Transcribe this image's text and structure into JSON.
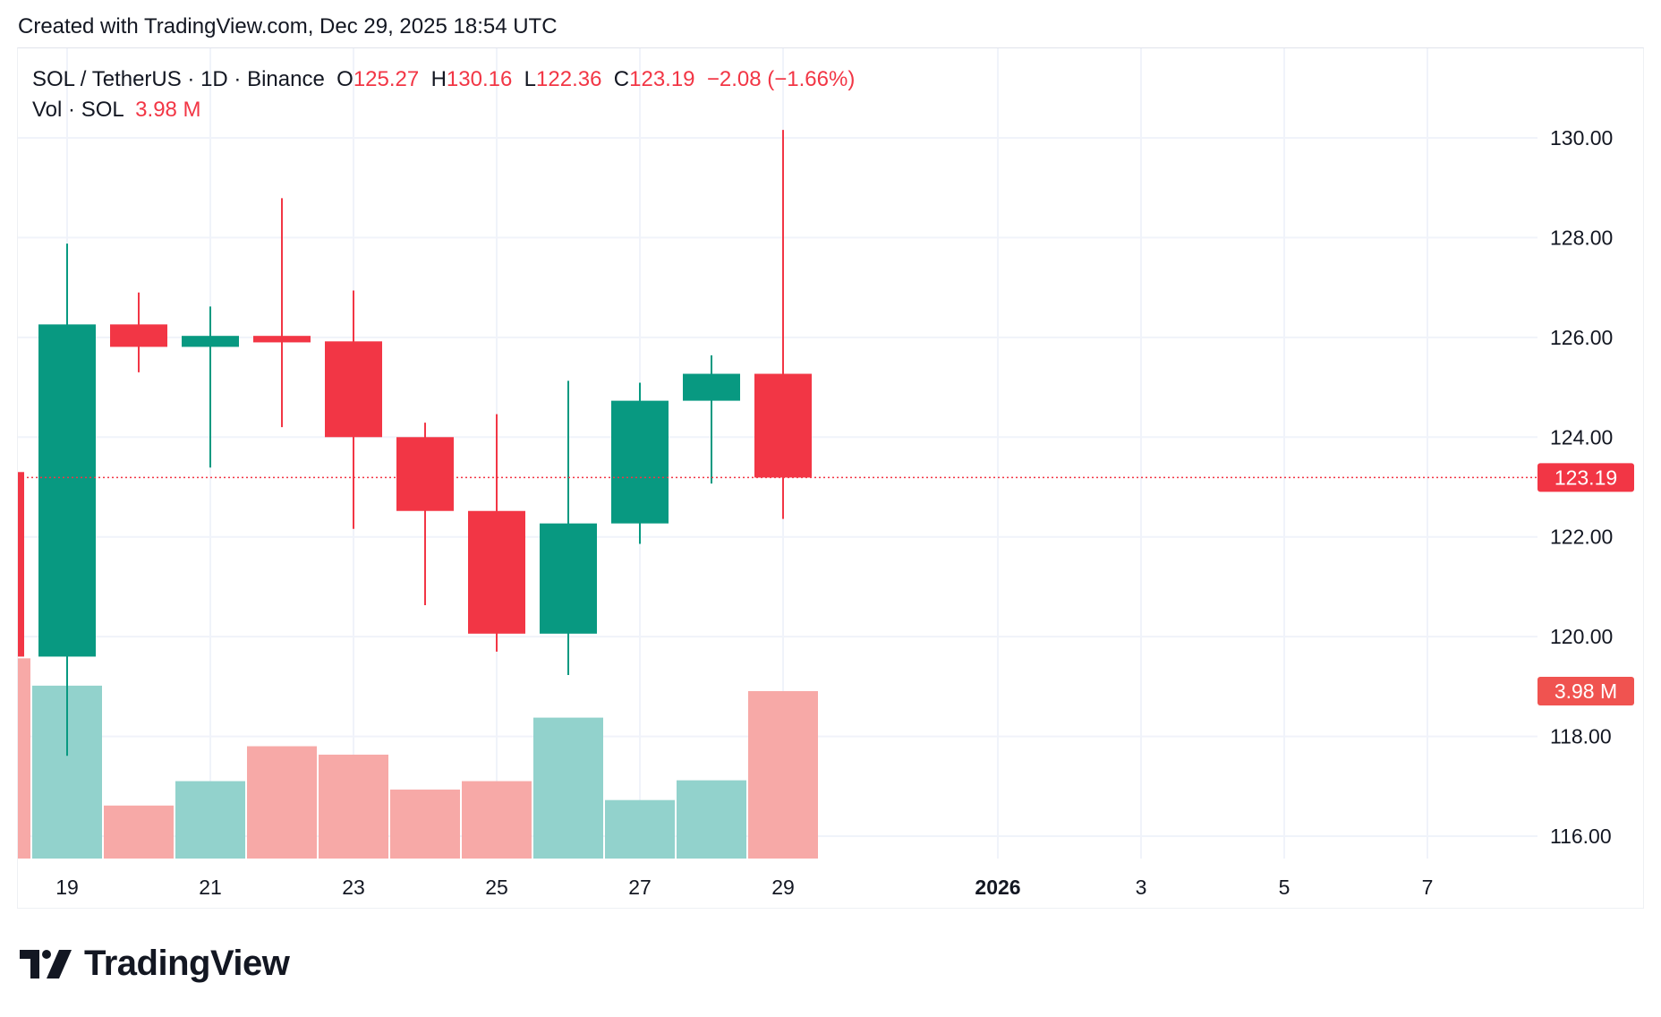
{
  "header": {
    "created": "Created with TradingView.com, Dec 29, 2025 18:54 UTC"
  },
  "legend": {
    "symbol": "SOL / TetherUS · 1D · Binance",
    "o_label": "O",
    "o": "125.27",
    "h_label": "H",
    "h": "130.16",
    "l_label": "L",
    "l": "122.36",
    "c_label": "C",
    "c": "123.19",
    "change": "−2.08 (−1.66%)",
    "vol_label": "Vol · SOL",
    "vol": "3.98 M"
  },
  "logo": {
    "text": "TradingView",
    "icon": "tradingview-logo-icon"
  },
  "colors": {
    "up": "#089981",
    "down": "#F23645",
    "vol_up": "#92D2CC",
    "vol_down": "#F7A9A7",
    "grid": "#f0f3fa"
  },
  "chart_data": {
    "type": "candlestick",
    "symbol": "SOL/USDT",
    "interval": "1D",
    "ylim": [
      115.5,
      131
    ],
    "yticks": [
      "116.00",
      "118.00",
      "120.00",
      "122.00",
      "124.00",
      "126.00",
      "128.00",
      "130.00"
    ],
    "xticks": [
      {
        "day": 19,
        "label": "19",
        "bold": false
      },
      {
        "day": 21,
        "label": "21",
        "bold": false
      },
      {
        "day": 23,
        "label": "23",
        "bold": false
      },
      {
        "day": 25,
        "label": "25",
        "bold": false
      },
      {
        "day": 27,
        "label": "27",
        "bold": false
      },
      {
        "day": 29,
        "label": "29",
        "bold": false
      },
      {
        "day": 32,
        "label": "2026",
        "bold": true
      },
      {
        "day": 34,
        "label": "3",
        "bold": false
      },
      {
        "day": 36,
        "label": "5",
        "bold": false
      },
      {
        "day": 38,
        "label": "7",
        "bold": false
      }
    ],
    "candles": [
      {
        "date": "2025-12-18",
        "day": 18,
        "o": 123.3,
        "h": 123.3,
        "l": 119.6,
        "c": 119.6,
        "v": 4.76
      },
      {
        "date": "2025-12-19",
        "day": 19,
        "o": 119.6,
        "h": 127.88,
        "l": 117.61,
        "c": 126.26,
        "v": 4.11
      },
      {
        "date": "2025-12-20",
        "day": 20,
        "o": 126.26,
        "h": 126.9,
        "l": 125.3,
        "c": 125.81,
        "v": 1.26
      },
      {
        "date": "2025-12-21",
        "day": 21,
        "o": 125.81,
        "h": 126.62,
        "l": 123.39,
        "c": 126.03,
        "v": 1.84
      },
      {
        "date": "2025-12-22",
        "day": 22,
        "o": 126.03,
        "h": 128.79,
        "l": 124.2,
        "c": 125.9,
        "v": 2.67
      },
      {
        "date": "2025-12-23",
        "day": 23,
        "o": 125.92,
        "h": 126.94,
        "l": 122.16,
        "c": 124.0,
        "v": 2.47
      },
      {
        "date": "2025-12-24",
        "day": 24,
        "o": 124.0,
        "h": 124.29,
        "l": 120.63,
        "c": 122.52,
        "v": 1.64
      },
      {
        "date": "2025-12-25",
        "day": 25,
        "o": 122.52,
        "h": 124.46,
        "l": 119.7,
        "c": 120.06,
        "v": 1.84
      },
      {
        "date": "2025-12-26",
        "day": 26,
        "o": 120.06,
        "h": 125.13,
        "l": 119.23,
        "c": 122.27,
        "v": 3.35
      },
      {
        "date": "2025-12-27",
        "day": 27,
        "o": 122.27,
        "h": 125.09,
        "l": 121.86,
        "c": 124.73,
        "v": 1.39
      },
      {
        "date": "2025-12-28",
        "day": 28,
        "o": 124.73,
        "h": 125.64,
        "l": 123.07,
        "c": 125.27,
        "v": 1.86
      },
      {
        "date": "2025-12-29",
        "day": 29,
        "o": 125.27,
        "h": 130.16,
        "l": 122.36,
        "c": 123.19,
        "v": 3.98
      }
    ],
    "volume_unit": "M",
    "last_price": {
      "value": 123.19,
      "label": "123.19"
    },
    "last_volume": {
      "value": 3.98,
      "label": "3.98 M"
    },
    "grid": true
  }
}
